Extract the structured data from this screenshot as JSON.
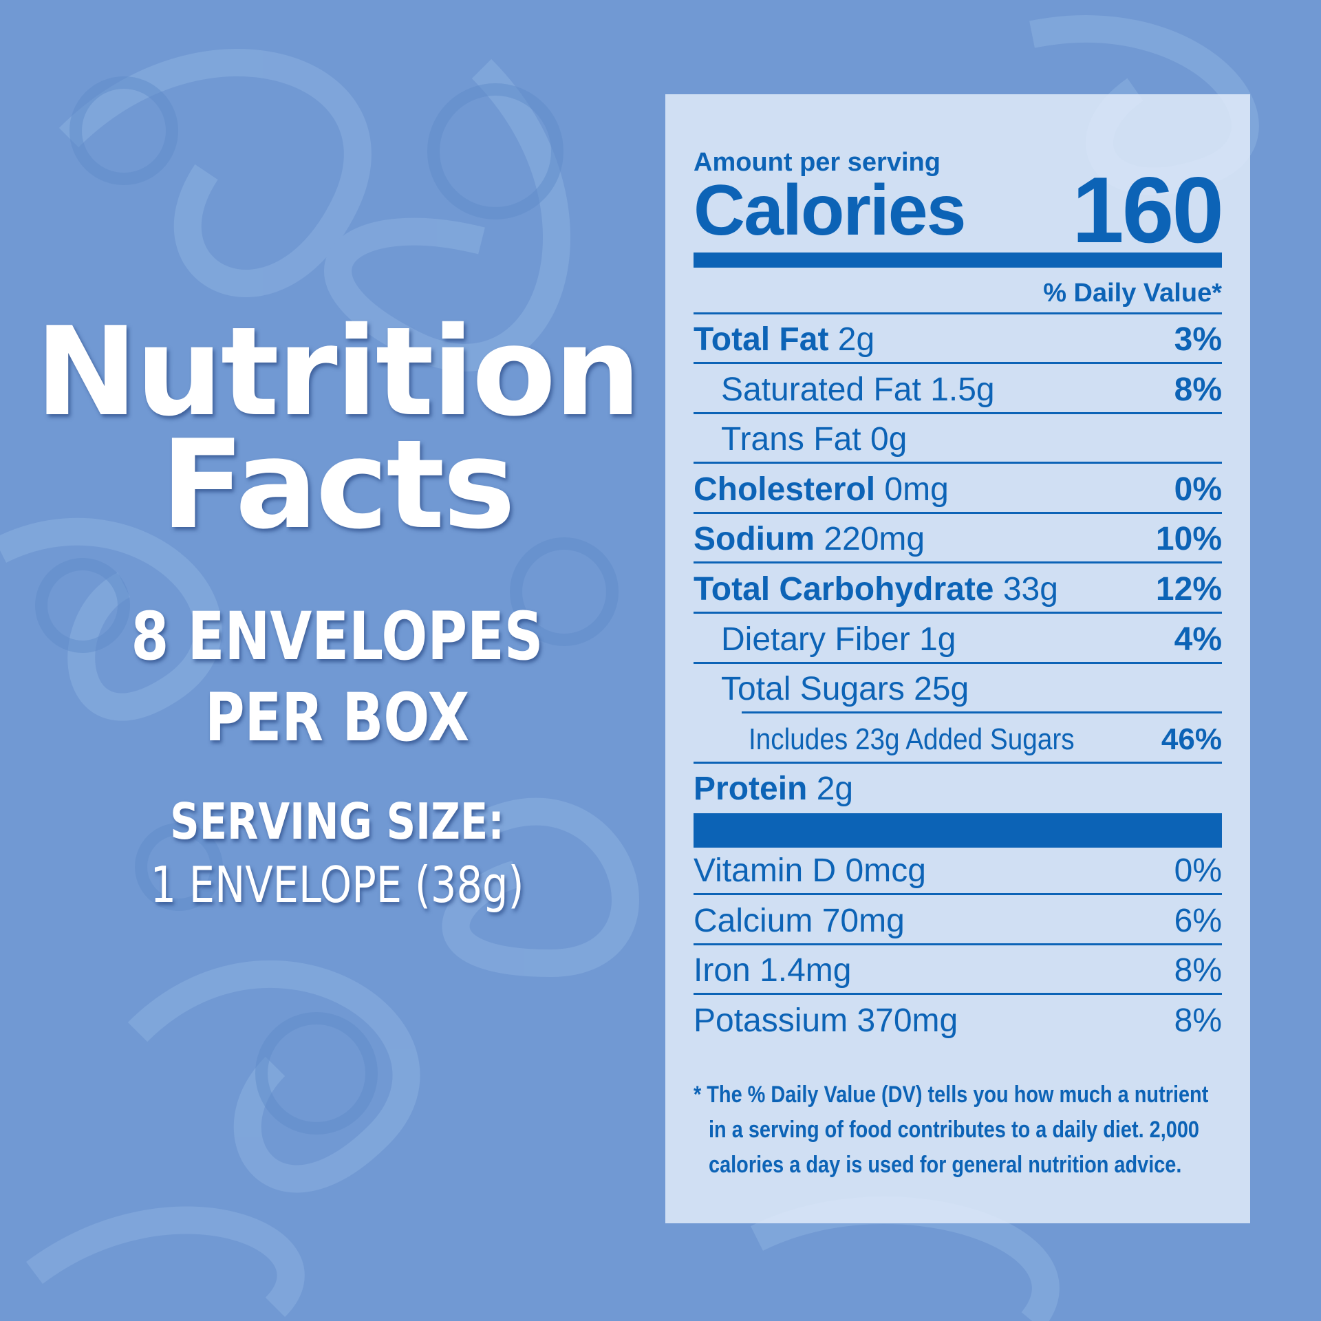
{
  "title_lines": [
    "Nutrition",
    "Facts"
  ],
  "package": {
    "count": "8 ENVELOPES",
    "unit": "PER BOX"
  },
  "serving": {
    "label": "SERVING SIZE:",
    "value": "1 ENVELOPE (38g)"
  },
  "label": {
    "amount_per_serving": "Amount per serving",
    "calories_label": "Calories",
    "calories": 160,
    "daily_value_header": "% Daily Value*",
    "nutrients": [
      {
        "name": "Total Fat",
        "amount": "2g",
        "dv": "3%"
      },
      {
        "name": "Saturated Fat",
        "amount": "1.5g",
        "dv": "8%"
      },
      {
        "name": "Trans Fat",
        "amount": "0g"
      },
      {
        "name": "Cholesterol",
        "amount": "0mg",
        "dv": "0%"
      },
      {
        "name": "Sodium",
        "amount": "220mg",
        "dv": "10%"
      },
      {
        "name": "Total Carbohydrate",
        "amount": "33g",
        "dv": "12%"
      },
      {
        "name": "Dietary Fiber",
        "amount": "1g",
        "dv": "4%"
      },
      {
        "name": "Total Sugars",
        "amount": "25g"
      },
      {
        "name": "Includes 23g Added Sugars",
        "dv": "46%"
      },
      {
        "name": "Protein",
        "amount": "2g"
      }
    ],
    "vitamins": [
      {
        "name": "Vitamin D",
        "amount": "0mcg",
        "dv": "0%"
      },
      {
        "name": "Calcium",
        "amount": "70mg",
        "dv": "6%"
      },
      {
        "name": "Iron",
        "amount": "1.4mg",
        "dv": "8%"
      },
      {
        "name": "Potassium",
        "amount": "370mg",
        "dv": "8%"
      }
    ],
    "footnote": [
      "* The % Daily Value (DV) tells you how much  a nutrient",
      "in a serving of food contributes to a daily diet. 2,000",
      "calories a day is used  for general nutrition advice."
    ]
  }
}
